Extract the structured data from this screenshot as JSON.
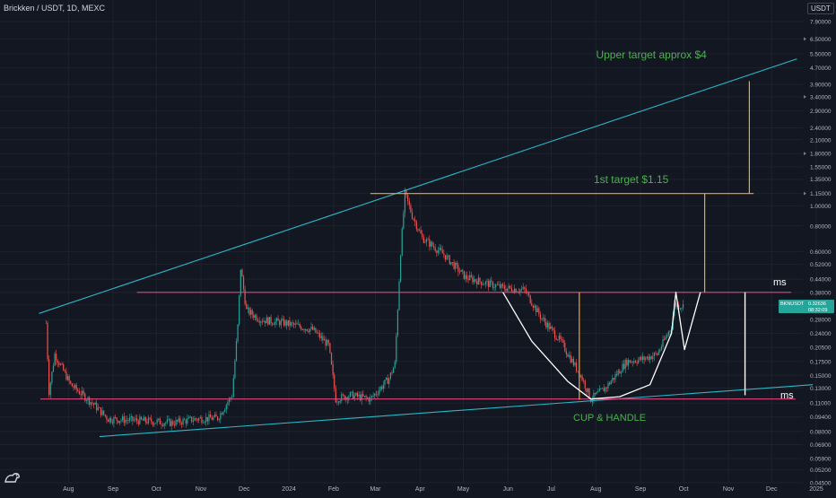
{
  "symbol_title": "Brickken / USDT, 1D, MEXC",
  "currency": "USDT",
  "colors": {
    "background": "#131722",
    "grid": "#1e222d",
    "axis_text": "#b2b5be",
    "up_candle": "#26a69a",
    "down_candle": "#ef5350",
    "trendline": "#2bb7c9",
    "resistance": "#e0457b",
    "target": "#f5a623",
    "annotation": "#4caf50",
    "cup": "#ffffff",
    "label_white": "#ffffff",
    "price_badge": "#26a69a"
  },
  "logo": {
    "icon": "tradingview-logo-icon"
  },
  "chart_data": {
    "type": "candlestick",
    "title": "Brickken / USDT, 1D, MEXC",
    "y_scale": "log",
    "ylim": [
      0.045,
      9.0
    ],
    "y_ticks": [
      "7.90000",
      "6.50000",
      "5.50000",
      "4.70000",
      "3.90000",
      "3.40000",
      "2.90000",
      "2.40000",
      "2.10000",
      "1.80000",
      "1.55000",
      "1.35000",
      "1.15000",
      "1.00000",
      "0.80000",
      "0.60000",
      "0.52000",
      "0.44000",
      "0.38000",
      "0.33000",
      "0.28000",
      "0.24000",
      "0.20500",
      "0.17500",
      "0.15000",
      "0.13000",
      "0.11000",
      "0.09400",
      "0.08000",
      "0.06900",
      "0.05900",
      "0.05200",
      "0.04500"
    ],
    "x_ticks": [
      "Aug",
      "Sep",
      "Oct",
      "Nov",
      "Dec",
      "2024",
      "Feb",
      "Mar",
      "Apr",
      "May",
      "Jun",
      "Jul",
      "Aug",
      "Sep",
      "Oct",
      "Nov",
      "Dec",
      "2025"
    ],
    "price_path": [
      [
        "2023-07-24",
        0.27
      ],
      [
        "2023-07-26",
        0.125
      ],
      [
        "2023-07-30",
        0.19
      ],
      [
        "2023-08-10",
        0.135
      ],
      [
        "2023-08-25",
        0.11
      ],
      [
        "2023-09-05",
        0.092
      ],
      [
        "2023-10-01",
        0.09
      ],
      [
        "2023-10-20",
        0.088
      ],
      [
        "2023-11-05",
        0.092
      ],
      [
        "2023-11-20",
        0.093
      ],
      [
        "2023-11-30",
        0.12
      ],
      [
        "2023-12-04",
        0.26
      ],
      [
        "2023-12-06",
        0.5
      ],
      [
        "2023-12-10",
        0.31
      ],
      [
        "2023-12-20",
        0.28
      ],
      [
        "2024-01-05",
        0.27
      ],
      [
        "2024-01-15",
        0.26
      ],
      [
        "2024-01-25",
        0.25
      ],
      [
        "2024-02-05",
        0.21
      ],
      [
        "2024-02-10",
        0.115
      ],
      [
        "2024-02-20",
        0.12
      ],
      [
        "2024-03-05",
        0.115
      ],
      [
        "2024-03-18",
        0.145
      ],
      [
        "2024-03-22",
        0.17
      ],
      [
        "2024-03-26",
        0.6
      ],
      [
        "2024-03-29",
        1.15
      ],
      [
        "2024-04-03",
        0.9
      ],
      [
        "2024-04-10",
        0.7
      ],
      [
        "2024-04-25",
        0.58
      ],
      [
        "2024-05-10",
        0.45
      ],
      [
        "2024-05-25",
        0.42
      ],
      [
        "2024-06-05",
        0.4
      ],
      [
        "2024-06-20",
        0.39
      ],
      [
        "2024-07-01",
        0.29
      ],
      [
        "2024-07-15",
        0.22
      ],
      [
        "2024-07-30",
        0.145
      ],
      [
        "2024-08-05",
        0.115
      ],
      [
        "2024-08-15",
        0.13
      ],
      [
        "2024-08-30",
        0.175
      ],
      [
        "2024-09-10",
        0.18
      ],
      [
        "2024-09-20",
        0.19
      ],
      [
        "2024-09-30",
        0.26
      ],
      [
        "2024-10-02",
        0.33
      ],
      [
        "2024-10-08",
        0.326
      ]
    ],
    "last_price": {
      "ticker": "BKNUSDT",
      "value": "0.32636",
      "countdown": "08:32:09"
    },
    "drawings": {
      "upper_trendline": {
        "from": [
          "2023-07-19",
          0.3
        ],
        "to": [
          "2024-12-26",
          5.2
        ]
      },
      "lower_trendline": {
        "from": [
          "2023-08-30",
          0.0755
        ],
        "to": [
          "2025-01-06",
          0.135
        ]
      },
      "resistance_top": {
        "price": 0.38,
        "from": "2023-09-25",
        "to": "2024-12-22"
      },
      "support_bottom": {
        "price": 0.115,
        "from": "2023-07-20",
        "to": "2024-12-25"
      },
      "first_target_line": {
        "price": 1.15,
        "from": "2024-03-05",
        "to": "2024-11-26"
      },
      "first_target_arrow": {
        "date": "2024-10-23",
        "from_price": 0.38,
        "to_price": 1.15
      },
      "upper_target_arrow": {
        "date": "2024-11-23",
        "from_price": 1.15,
        "to_price": 4.05
      },
      "cup_depth_arrow": {
        "date": "2024-07-28",
        "from_price": 0.38,
        "to_price": 0.114
      },
      "white_measure_line": {
        "date": "2024-11-20",
        "from_price": 0.38,
        "to_price": 0.12
      }
    },
    "annotations": {
      "upper_target": "Upper target approx $4",
      "first_target": "1st target $1.15",
      "pattern": "CUP & HANDLE",
      "top_line_label": "ms",
      "bottom_line_label": "ms"
    }
  }
}
